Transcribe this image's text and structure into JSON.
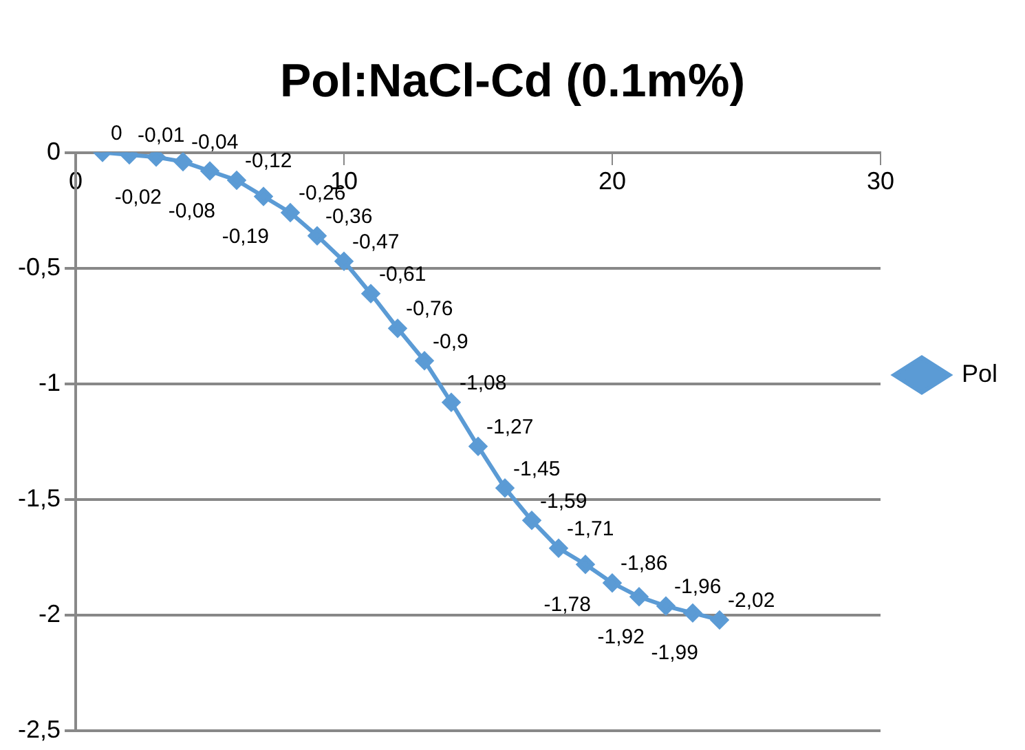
{
  "chart_data": {
    "type": "line",
    "title": "Pol:NaCl-Cd (0.1m%)",
    "x": [
      1,
      2,
      3,
      4,
      5,
      6,
      7,
      8,
      9,
      10,
      11,
      12,
      13,
      14,
      15,
      16,
      17,
      18,
      19,
      20,
      21,
      22,
      23,
      24
    ],
    "series": [
      {
        "name": "Pol",
        "color": "#5b9bd5",
        "values": [
          0,
          -0.01,
          -0.02,
          -0.04,
          -0.08,
          -0.12,
          -0.19,
          -0.26,
          -0.36,
          -0.47,
          -0.61,
          -0.76,
          -0.9,
          -1.08,
          -1.27,
          -1.45,
          -1.59,
          -1.71,
          -1.78,
          -1.86,
          -1.92,
          -1.96,
          -1.99,
          -2.02
        ],
        "value_labels": [
          "0",
          "-0,01",
          "-0,02",
          "-0,04",
          "-0,08",
          "-0,12",
          "-0,19",
          "-0,26",
          "-0,36",
          "-0,47",
          "-0,61",
          "-0,76",
          "-0,9",
          "-1,08",
          "-1,27",
          "-1,45",
          "-1,59",
          "-1,71",
          "-1,78",
          "-1,86",
          "-1,92",
          "-1,96",
          "-1,99",
          "-2,02"
        ]
      }
    ],
    "xlim": [
      0,
      30
    ],
    "xticks": [
      0,
      10,
      20,
      30
    ],
    "ylim": [
      -2.5,
      0
    ],
    "yticks": [
      {
        "value": -2.5,
        "label": "-2,5"
      },
      {
        "value": -2,
        "label": "-2"
      },
      {
        "value": -1.5,
        "label": "-1,5"
      },
      {
        "value": -1,
        "label": "-1"
      },
      {
        "value": -0.5,
        "label": "-0,5"
      },
      {
        "value": 0,
        "label": "0"
      }
    ],
    "grid": "y",
    "legend": "right",
    "marker": "diamond",
    "line_style": "solid"
  }
}
